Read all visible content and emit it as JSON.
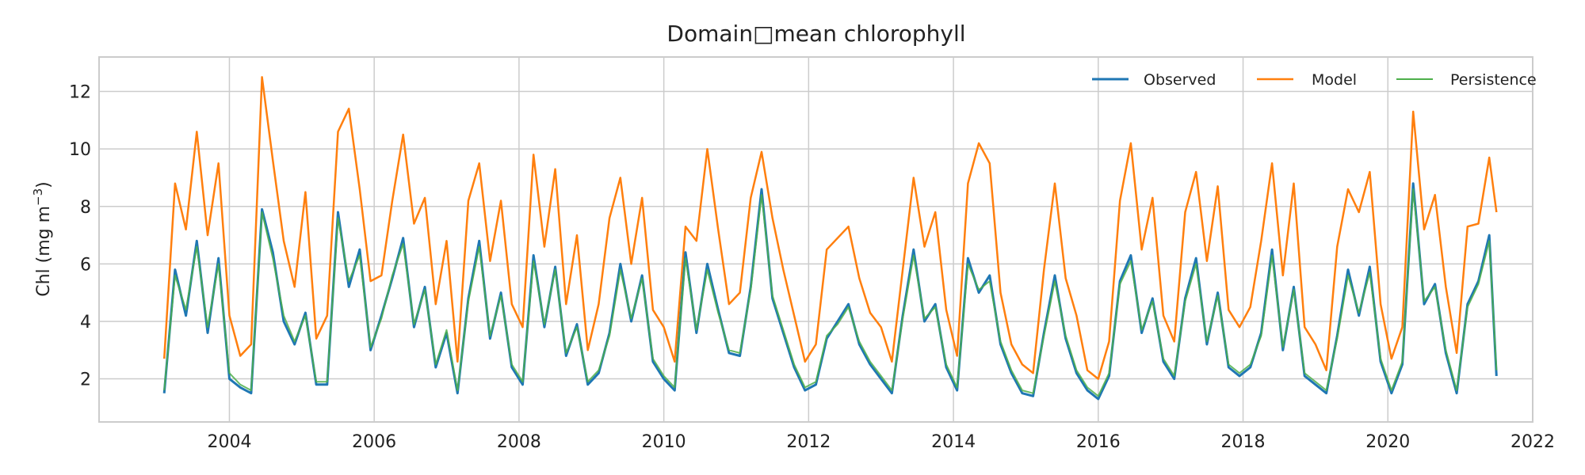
{
  "chart_data": {
    "type": "line",
    "title": "Domain□mean chlorophyll",
    "xlabel": "",
    "ylabel": "Chl (mg m",
    "ylabel_superscript": "−3",
    "ylabel_suffix": ")",
    "xlim": [
      2002.2,
      2022.0
    ],
    "ylim": [
      0.5,
      13.2
    ],
    "xticks": [
      2004,
      2006,
      2008,
      2010,
      2012,
      2014,
      2016,
      2018,
      2020,
      2022
    ],
    "xtick_labels": [
      "2004",
      "2006",
      "2008",
      "2010",
      "2012",
      "2014",
      "2016",
      "2018",
      "2020",
      "2022"
    ],
    "yticks": [
      2,
      4,
      6,
      8,
      10,
      12
    ],
    "ytick_labels": [
      "2",
      "4",
      "6",
      "8",
      "10",
      "12"
    ],
    "grid": true,
    "legend_position": "top-right",
    "colors": {
      "observed": "#1f77b4",
      "model": "#ff7f0e",
      "persistence": "#4daf4a"
    },
    "series": [
      {
        "name": "Observed",
        "x": [
          2003.1,
          2003.25,
          2003.4,
          2003.55,
          2003.7,
          2003.85,
          2004.0,
          2004.15,
          2004.3,
          2004.45,
          2004.6,
          2004.75,
          2004.9,
          2005.05,
          2005.2,
          2005.35,
          2005.5,
          2005.65,
          2005.8,
          2005.95,
          2006.1,
          2006.25,
          2006.4,
          2006.55,
          2006.7,
          2006.85,
          2007.0,
          2007.15,
          2007.3,
          2007.45,
          2007.6,
          2007.75,
          2007.9,
          2008.05,
          2008.2,
          2008.35,
          2008.5,
          2008.65,
          2008.8,
          2008.95,
          2009.1,
          2009.25,
          2009.4,
          2009.55,
          2009.7,
          2009.85,
          2010.0,
          2010.15,
          2010.3,
          2010.45,
          2010.6,
          2010.75,
          2010.9,
          2011.05,
          2011.2,
          2011.35,
          2011.5,
          2011.65,
          2011.8,
          2011.95,
          2012.1,
          2012.25,
          2012.4,
          2012.55,
          2012.7,
          2012.85,
          2013.0,
          2013.15,
          2013.3,
          2013.45,
          2013.6,
          2013.75,
          2013.9,
          2014.05,
          2014.2,
          2014.35,
          2014.5,
          2014.65,
          2014.8,
          2014.95,
          2015.1,
          2015.25,
          2015.4,
          2015.55,
          2015.7,
          2015.85,
          2016.0,
          2016.15,
          2016.3,
          2016.45,
          2016.6,
          2016.75,
          2016.9,
          2017.05,
          2017.2,
          2017.35,
          2017.5,
          2017.65,
          2017.8,
          2017.95,
          2018.1,
          2018.25,
          2018.4,
          2018.55,
          2018.7,
          2018.85,
          2019.0,
          2019.15,
          2019.3,
          2019.45,
          2019.6,
          2019.75,
          2019.9,
          2020.05,
          2020.2,
          2020.35,
          2020.5,
          2020.65,
          2020.8,
          2020.95,
          2021.1,
          2021.25,
          2021.4,
          2021.5
        ],
        "y": [
          1.5,
          5.8,
          4.2,
          6.8,
          3.6,
          6.2,
          2.0,
          1.7,
          1.5,
          7.9,
          6.4,
          4.0,
          3.2,
          4.3,
          1.8,
          1.8,
          7.8,
          5.2,
          6.5,
          3.0,
          4.2,
          5.5,
          6.9,
          3.8,
          5.2,
          2.4,
          3.6,
          1.5,
          4.8,
          6.8,
          3.4,
          5.0,
          2.4,
          1.8,
          6.3,
          3.8,
          5.9,
          2.8,
          3.9,
          1.8,
          2.2,
          3.6,
          6.0,
          4.0,
          5.6,
          2.6,
          2.0,
          1.6,
          6.4,
          3.6,
          6.0,
          4.4,
          2.9,
          2.8,
          5.2,
          8.6,
          4.8,
          3.6,
          2.4,
          1.6,
          1.8,
          3.4,
          4.0,
          4.6,
          3.2,
          2.5,
          2.0,
          1.5,
          4.2,
          6.5,
          4.0,
          4.6,
          2.4,
          1.6,
          6.2,
          5.0,
          5.6,
          3.2,
          2.2,
          1.5,
          1.4,
          3.6,
          5.6,
          3.4,
          2.2,
          1.6,
          1.3,
          2.1,
          5.4,
          6.3,
          3.6,
          4.8,
          2.6,
          2.0,
          4.8,
          6.2,
          3.2,
          5.0,
          2.4,
          2.1,
          2.4,
          3.6,
          6.5,
          3.0,
          5.2,
          2.1,
          1.8,
          1.5,
          3.5,
          5.8,
          4.2,
          5.9,
          2.6,
          1.5,
          2.5,
          8.8,
          4.6,
          5.3,
          2.9,
          1.5,
          4.6,
          5.4,
          7.0,
          2.1
        ]
      },
      {
        "name": "Model",
        "x": [
          2003.1,
          2003.25,
          2003.4,
          2003.55,
          2003.7,
          2003.85,
          2004.0,
          2004.15,
          2004.3,
          2004.45,
          2004.6,
          2004.75,
          2004.9,
          2005.05,
          2005.2,
          2005.35,
          2005.5,
          2005.65,
          2005.8,
          2005.95,
          2006.1,
          2006.25,
          2006.4,
          2006.55,
          2006.7,
          2006.85,
          2007.0,
          2007.15,
          2007.3,
          2007.45,
          2007.6,
          2007.75,
          2007.9,
          2008.05,
          2008.2,
          2008.35,
          2008.5,
          2008.65,
          2008.8,
          2008.95,
          2009.1,
          2009.25,
          2009.4,
          2009.55,
          2009.7,
          2009.85,
          2010.0,
          2010.15,
          2010.3,
          2010.45,
          2010.6,
          2010.75,
          2010.9,
          2011.05,
          2011.2,
          2011.35,
          2011.5,
          2011.65,
          2011.8,
          2011.95,
          2012.1,
          2012.25,
          2012.4,
          2012.55,
          2012.7,
          2012.85,
          2013.0,
          2013.15,
          2013.3,
          2013.45,
          2013.6,
          2013.75,
          2013.9,
          2014.05,
          2014.2,
          2014.35,
          2014.5,
          2014.65,
          2014.8,
          2014.95,
          2015.1,
          2015.25,
          2015.4,
          2015.55,
          2015.7,
          2015.85,
          2016.0,
          2016.15,
          2016.3,
          2016.45,
          2016.6,
          2016.75,
          2016.9,
          2017.05,
          2017.2,
          2017.35,
          2017.5,
          2017.65,
          2017.8,
          2017.95,
          2018.1,
          2018.25,
          2018.4,
          2018.55,
          2018.7,
          2018.85,
          2019.0,
          2019.15,
          2019.3,
          2019.45,
          2019.6,
          2019.75,
          2019.9,
          2020.05,
          2020.2,
          2020.35,
          2020.5,
          2020.65,
          2020.8,
          2020.95,
          2021.1,
          2021.25,
          2021.4,
          2021.5
        ],
        "y": [
          2.7,
          8.8,
          7.2,
          10.6,
          7.0,
          9.5,
          4.2,
          2.8,
          3.2,
          12.5,
          9.6,
          6.8,
          5.2,
          8.5,
          3.4,
          4.2,
          10.6,
          11.4,
          8.6,
          5.4,
          5.6,
          8.2,
          10.5,
          7.4,
          8.3,
          4.6,
          6.8,
          2.6,
          8.2,
          9.5,
          6.1,
          8.2,
          4.6,
          3.8,
          9.8,
          6.6,
          9.3,
          4.6,
          7.0,
          3.0,
          4.6,
          7.6,
          9.0,
          6.0,
          8.3,
          4.4,
          3.8,
          2.6,
          7.3,
          6.8,
          10.0,
          7.2,
          4.6,
          5.0,
          8.3,
          9.9,
          7.6,
          5.8,
          4.2,
          2.6,
          3.2,
          6.5,
          6.9,
          7.3,
          5.5,
          4.3,
          3.8,
          2.6,
          5.8,
          9.0,
          6.6,
          7.8,
          4.4,
          2.8,
          8.8,
          10.2,
          9.5,
          5.0,
          3.2,
          2.5,
          2.2,
          5.8,
          8.8,
          5.5,
          4.2,
          2.3,
          2.0,
          3.3,
          8.2,
          10.2,
          6.5,
          8.3,
          4.2,
          3.3,
          7.8,
          9.2,
          6.1,
          8.7,
          4.4,
          3.8,
          4.5,
          6.8,
          9.5,
          5.6,
          8.8,
          3.8,
          3.2,
          2.3,
          6.6,
          8.6,
          7.8,
          9.2,
          4.6,
          2.7,
          3.8,
          11.3,
          7.2,
          8.4,
          5.2,
          2.9,
          7.3,
          7.4,
          9.7,
          7.8
        ]
      },
      {
        "name": "Persistence",
        "x": [
          2003.1,
          2003.25,
          2003.4,
          2003.55,
          2003.7,
          2003.85,
          2004.0,
          2004.15,
          2004.3,
          2004.45,
          2004.6,
          2004.75,
          2004.9,
          2005.05,
          2005.2,
          2005.35,
          2005.5,
          2005.65,
          2005.8,
          2005.95,
          2006.1,
          2006.25,
          2006.4,
          2006.55,
          2006.7,
          2006.85,
          2007.0,
          2007.15,
          2007.3,
          2007.45,
          2007.6,
          2007.75,
          2007.9,
          2008.05,
          2008.2,
          2008.35,
          2008.5,
          2008.65,
          2008.8,
          2008.95,
          2009.1,
          2009.25,
          2009.4,
          2009.55,
          2009.7,
          2009.85,
          2010.0,
          2010.15,
          2010.3,
          2010.45,
          2010.6,
          2010.75,
          2010.9,
          2011.05,
          2011.2,
          2011.35,
          2011.5,
          2011.65,
          2011.8,
          2011.95,
          2012.1,
          2012.25,
          2012.4,
          2012.55,
          2012.7,
          2012.85,
          2013.0,
          2013.15,
          2013.3,
          2013.45,
          2013.6,
          2013.75,
          2013.9,
          2014.05,
          2014.2,
          2014.35,
          2014.5,
          2014.65,
          2014.8,
          2014.95,
          2015.1,
          2015.25,
          2015.4,
          2015.55,
          2015.7,
          2015.85,
          2016.0,
          2016.15,
          2016.3,
          2016.45,
          2016.6,
          2016.75,
          2016.9,
          2017.05,
          2017.2,
          2017.35,
          2017.5,
          2017.65,
          2017.8,
          2017.95,
          2018.1,
          2018.25,
          2018.4,
          2018.55,
          2018.7,
          2018.85,
          2019.0,
          2019.15,
          2019.3,
          2019.45,
          2019.6,
          2019.75,
          2019.9,
          2020.05,
          2020.2,
          2020.35,
          2020.5,
          2020.65,
          2020.8,
          2020.95,
          2021.1,
          2021.25,
          2021.4,
          2021.5
        ],
        "y": [
          1.6,
          5.6,
          4.4,
          6.6,
          3.8,
          6.0,
          2.2,
          1.8,
          1.6,
          7.8,
          6.2,
          4.2,
          3.3,
          4.2,
          1.9,
          1.9,
          7.6,
          5.4,
          6.3,
          3.1,
          4.1,
          5.6,
          6.7,
          3.9,
          5.1,
          2.5,
          3.7,
          1.6,
          4.7,
          6.6,
          3.5,
          4.9,
          2.5,
          1.9,
          6.1,
          3.9,
          5.8,
          2.9,
          3.8,
          1.9,
          2.3,
          3.5,
          5.8,
          4.1,
          5.5,
          2.7,
          2.1,
          1.7,
          6.2,
          3.7,
          5.8,
          4.3,
          3.0,
          2.9,
          5.1,
          8.4,
          4.9,
          3.7,
          2.5,
          1.7,
          1.9,
          3.5,
          3.9,
          4.5,
          3.3,
          2.6,
          2.1,
          1.6,
          4.1,
          6.3,
          4.1,
          4.5,
          2.5,
          1.7,
          6.0,
          5.1,
          5.4,
          3.3,
          2.3,
          1.6,
          1.5,
          3.5,
          5.4,
          3.5,
          2.3,
          1.7,
          1.4,
          2.2,
          5.3,
          6.1,
          3.7,
          4.7,
          2.7,
          2.1,
          4.7,
          6.0,
          3.3,
          4.9,
          2.5,
          2.2,
          2.5,
          3.5,
          6.3,
          3.1,
          5.1,
          2.2,
          1.9,
          1.6,
          3.4,
          5.6,
          4.3,
          5.7,
          2.7,
          1.6,
          2.6,
          8.6,
          4.7,
          5.2,
          3.0,
          1.6,
          4.5,
          5.3,
          6.8,
          2.3
        ]
      }
    ]
  }
}
